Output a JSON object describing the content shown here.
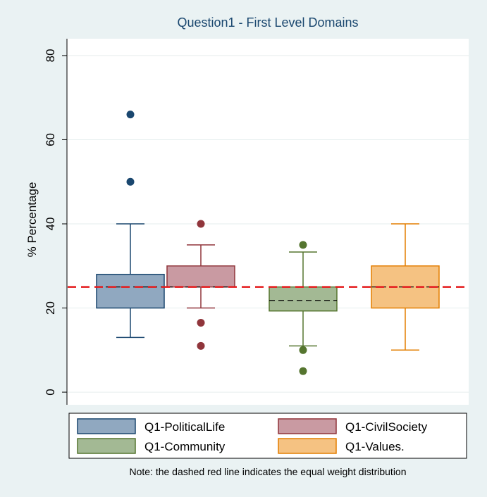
{
  "chart_data": {
    "type": "box",
    "title": "Question1 - First Level Domains",
    "y_label": "% Percentage",
    "ylim": [
      -3,
      84
    ],
    "yticks": [
      0,
      20,
      40,
      60,
      80
    ],
    "grid": true,
    "reference_line": {
      "value": 25,
      "color": "#e41a1c"
    },
    "note": "Note: the dashed red line indicates the equal weight distribution",
    "series": [
      {
        "name": "Q1-PoliticalLife",
        "color": "#90a8c0",
        "edge": "#1a476f",
        "q1": 20,
        "median": 25,
        "q3": 28,
        "whisker_low": 13,
        "whisker_high": 40,
        "outliers": [
          50,
          66
        ]
      },
      {
        "name": "Q1-CivilSociety",
        "color": "#c99aa2",
        "edge": "#90353b",
        "q1": 25,
        "median": 25,
        "q3": 30,
        "whisker_low": 20,
        "whisker_high": 35,
        "outliers": [
          40,
          16.5,
          11
        ]
      },
      {
        "name": "Q1-Community",
        "color": "#a3b994",
        "edge": "#55752f",
        "q1": 19.3,
        "median": 21.8,
        "q3": 25,
        "whisker_low": 11,
        "whisker_high": 33.3,
        "outliers": [
          35,
          10,
          5
        ]
      },
      {
        "name": "Q1-Values.",
        "color": "#f5c282",
        "edge": "#e37e00",
        "q1": 20,
        "median": 25,
        "q3": 30,
        "whisker_low": 10,
        "whisker_high": 40,
        "outliers": []
      }
    ]
  }
}
